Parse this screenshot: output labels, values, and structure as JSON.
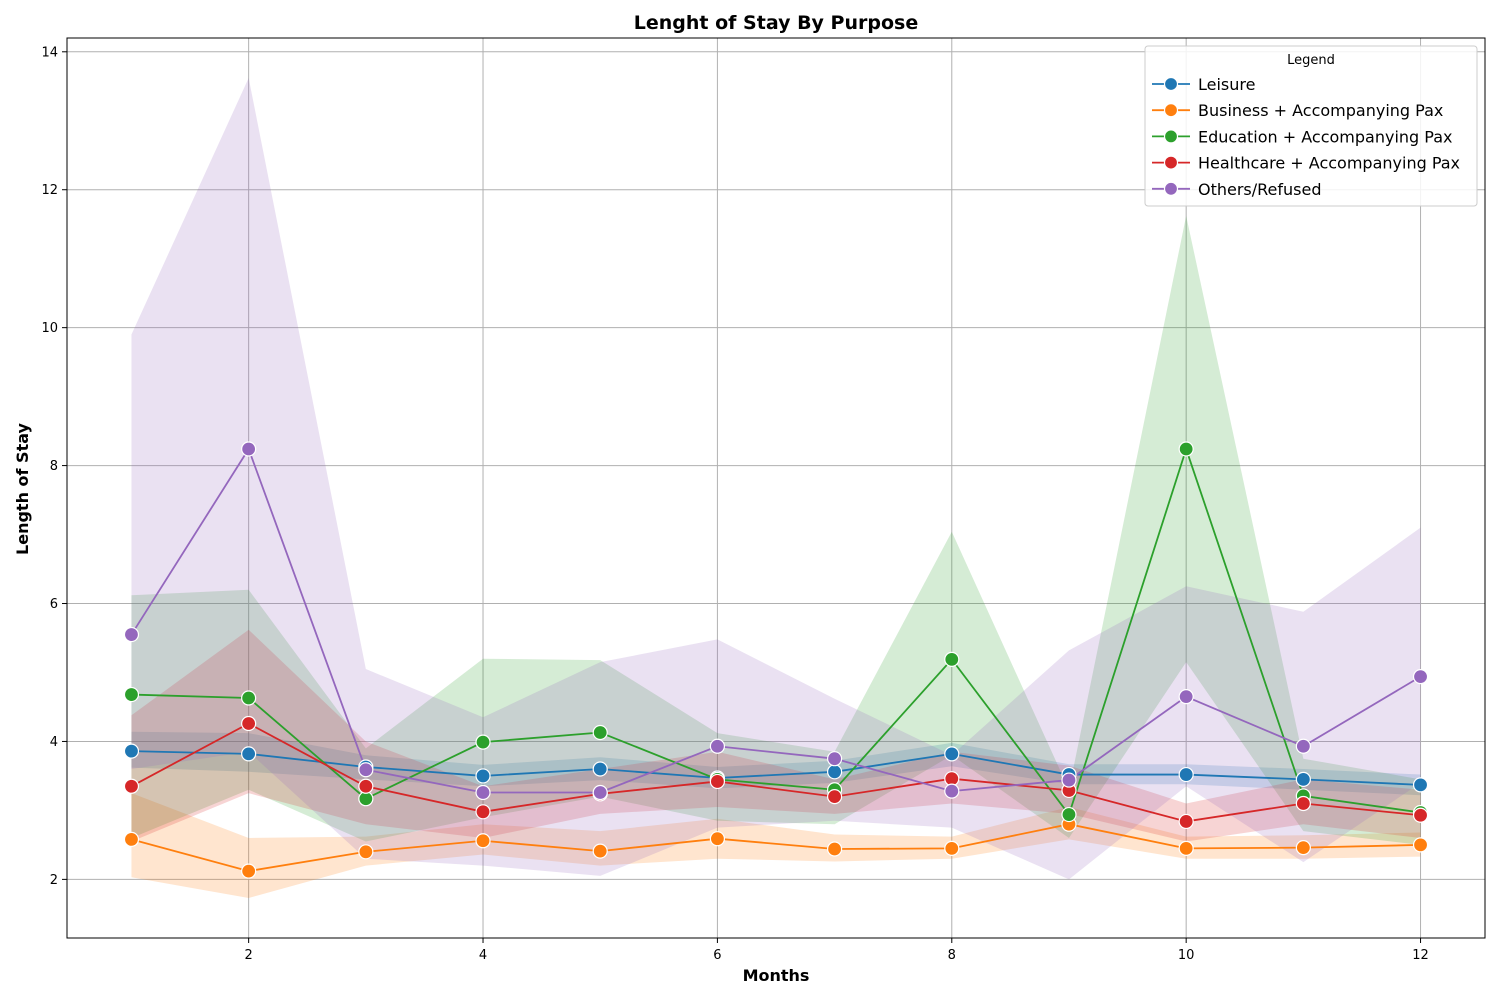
{
  "chart_data": {
    "type": "line",
    "title": "Lenght of Stay By Purpose",
    "xlabel": "Months",
    "ylabel": "Length of Stay",
    "xlim": [
      0.45,
      12.55
    ],
    "ylim": [
      1.15,
      14.2
    ],
    "xticks": [
      2,
      4,
      6,
      8,
      10,
      12
    ],
    "yticks": [
      2,
      4,
      6,
      8,
      10,
      12,
      14
    ],
    "grid": true,
    "legend_title": "Legend",
    "legend_position": "top-right",
    "x": [
      1,
      2,
      3,
      4,
      5,
      6,
      7,
      8,
      9,
      10,
      11,
      12
    ],
    "series": [
      {
        "name": "Leisure",
        "color": "#1f77b4",
        "values": [
          3.86,
          3.82,
          3.63,
          3.5,
          3.6,
          3.47,
          3.56,
          3.82,
          3.52,
          3.52,
          3.45,
          3.37
        ],
        "ci_low": [
          3.62,
          3.56,
          3.45,
          3.35,
          3.44,
          3.32,
          3.4,
          3.64,
          3.38,
          3.38,
          3.3,
          3.22
        ],
        "ci_high": [
          4.14,
          4.12,
          3.8,
          3.66,
          3.77,
          3.63,
          3.72,
          3.98,
          3.67,
          3.67,
          3.6,
          3.52
        ]
      },
      {
        "name": "Business + Accompanying Pax",
        "color": "#ff7f0e",
        "values": [
          2.58,
          2.12,
          2.4,
          2.56,
          2.41,
          2.59,
          2.44,
          2.45,
          2.8,
          2.45,
          2.46,
          2.5
        ],
        "ci_low": [
          2.03,
          1.73,
          2.2,
          2.36,
          2.2,
          2.3,
          2.26,
          2.3,
          2.58,
          2.3,
          2.3,
          2.33
        ],
        "ci_high": [
          3.25,
          2.6,
          2.62,
          2.8,
          2.7,
          2.88,
          2.65,
          2.62,
          3.05,
          2.62,
          2.64,
          2.68
        ]
      },
      {
        "name": "Education + Accompanying Pax",
        "color": "#2ca02c",
        "values": [
          4.68,
          4.63,
          3.17,
          3.99,
          4.13,
          3.45,
          3.3,
          5.19,
          2.94,
          8.24,
          3.21,
          2.97
        ],
        "ci_low": [
          2.6,
          3.3,
          2.55,
          2.9,
          3.2,
          2.85,
          2.8,
          3.8,
          2.6,
          5.15,
          2.7,
          2.5
        ],
        "ci_high": [
          6.12,
          6.2,
          3.9,
          5.2,
          5.18,
          4.12,
          3.85,
          7.04,
          3.3,
          11.62,
          3.75,
          3.45
        ]
      },
      {
        "name": "Healthcare + Accompanying Pax",
        "color": "#d62728",
        "values": [
          3.35,
          4.26,
          3.35,
          2.98,
          3.24,
          3.42,
          3.2,
          3.46,
          3.29,
          2.84,
          3.1,
          2.93
        ],
        "ci_low": [
          2.55,
          3.25,
          2.8,
          2.6,
          2.95,
          3.05,
          2.95,
          3.1,
          2.95,
          2.55,
          2.8,
          2.6
        ],
        "ci_high": [
          4.38,
          5.62,
          4.0,
          3.35,
          3.6,
          3.85,
          3.45,
          3.85,
          3.65,
          3.1,
          3.45,
          3.3
        ]
      },
      {
        "name": "Others/Refused",
        "color": "#9467bd",
        "values": [
          5.55,
          8.24,
          3.59,
          3.26,
          3.26,
          3.93,
          3.75,
          3.28,
          3.44,
          4.65,
          3.93,
          4.94
        ],
        "ci_low": [
          3.6,
          3.85,
          2.3,
          2.2,
          2.05,
          2.75,
          2.85,
          2.75,
          2.0,
          3.35,
          2.25,
          3.4
        ],
        "ci_high": [
          9.9,
          13.62,
          5.05,
          4.35,
          5.15,
          5.48,
          4.62,
          3.8,
          5.32,
          6.25,
          5.88,
          7.1
        ]
      }
    ]
  }
}
